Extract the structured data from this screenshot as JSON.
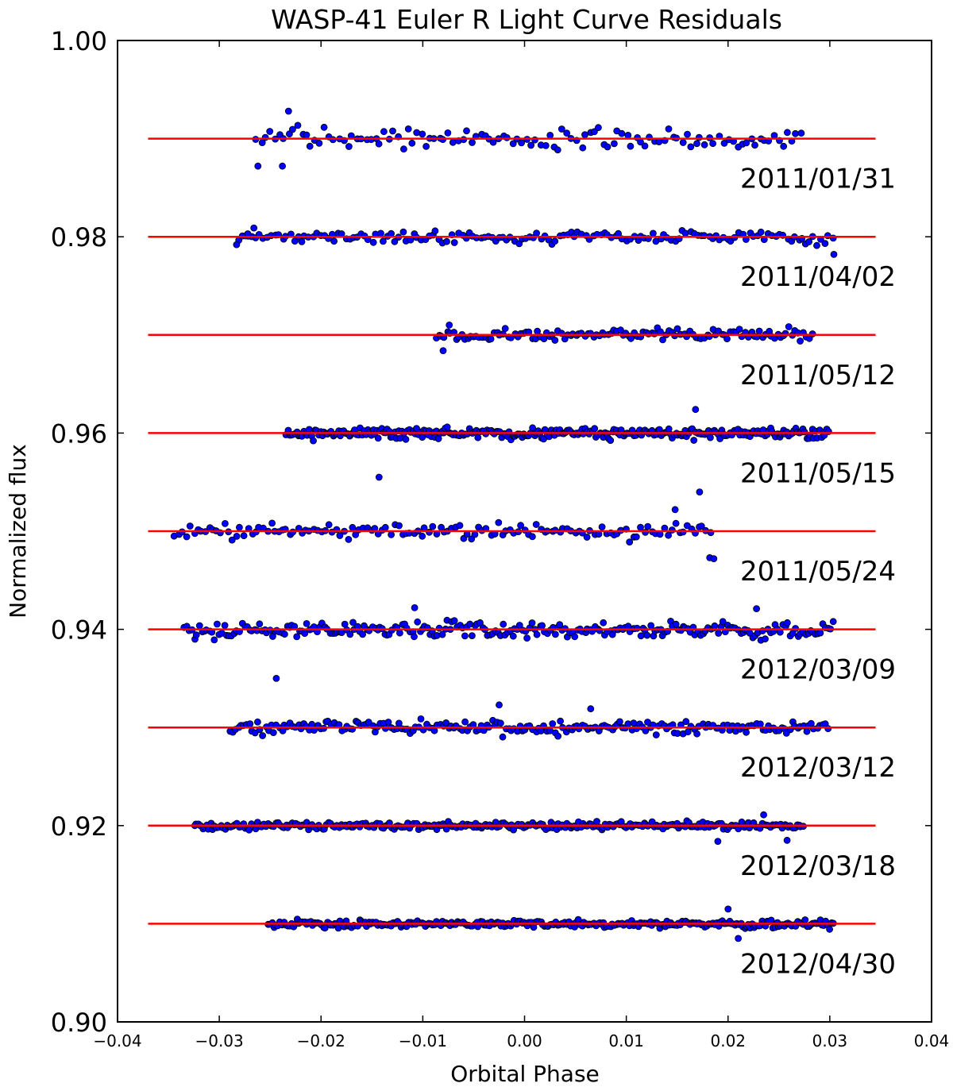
{
  "chart_data": {
    "type": "scatter",
    "title": "WASP-41 Euler R Light Curve Residuals",
    "xlabel": "Orbital Phase",
    "ylabel": "Normalized flux",
    "xlim": [
      -0.04,
      0.04
    ],
    "ylim": [
      0.9,
      1.0
    ],
    "xticks": [
      -0.04,
      -0.03,
      -0.02,
      -0.01,
      0.0,
      0.01,
      0.02,
      0.03,
      0.04
    ],
    "xtick_labels": [
      "−0.04",
      "−0.03",
      "−0.02",
      "−0.01",
      "0.00",
      "0.01",
      "0.02",
      "0.03",
      "0.04"
    ],
    "yticks": [
      0.9,
      0.92,
      0.94,
      0.96,
      0.98,
      1.0
    ],
    "ytick_labels": [
      "0.90",
      "0.92",
      "0.94",
      "0.96",
      "0.98",
      "1.00"
    ],
    "grid": false,
    "point_color": "#0000ff",
    "point_edge_color": "#000000",
    "model_line_color": "#ff0000",
    "model_line_xrange": [
      -0.037,
      0.0345
    ],
    "series": [
      {
        "name": "2011/01/31",
        "baseline": 0.99,
        "phase_range": [
          -0.0265,
          0.0275
        ],
        "scatter": 0.001,
        "n": 120,
        "outliers": [
          [
            -0.0262,
            0.9872
          ],
          [
            -0.0238,
            0.9872
          ],
          [
            -0.0232,
            0.9928
          ]
        ]
      },
      {
        "name": "2011/04/02",
        "baseline": 0.98,
        "phase_range": [
          -0.0283,
          0.0305
        ],
        "scatter": 0.0007,
        "n": 160,
        "outliers": [
          [
            -0.0283,
            0.9792
          ],
          [
            -0.0272,
            0.9803
          ],
          [
            -0.0266,
            0.9809
          ],
          [
            0.0304,
            0.9782
          ]
        ]
      },
      {
        "name": "2011/05/12",
        "baseline": 0.97,
        "phase_range": [
          -0.0088,
          0.0285
        ],
        "scatter": 0.0006,
        "n": 130,
        "outliers": [
          [
            -0.008,
            0.9684
          ],
          [
            -0.0074,
            0.971
          ]
        ]
      },
      {
        "name": "2011/05/15",
        "baseline": 0.96,
        "phase_range": [
          -0.0235,
          0.03
        ],
        "scatter": 0.0006,
        "n": 300,
        "outliers": [
          [
            -0.0143,
            0.9555
          ],
          [
            0.0172,
            0.954
          ],
          [
            0.0168,
            0.9624
          ]
        ]
      },
      {
        "name": "2011/05/24",
        "baseline": 0.95,
        "phase_range": [
          -0.0345,
          0.0185
        ],
        "scatter": 0.0008,
        "n": 140,
        "outliers": [
          [
            0.0182,
            0.9473
          ],
          [
            0.0186,
            0.9472
          ],
          [
            0.0148,
            0.9522
          ]
        ]
      },
      {
        "name": "2012/03/09",
        "baseline": 0.94,
        "phase_range": [
          -0.0335,
          0.0305
        ],
        "scatter": 0.0009,
        "n": 260,
        "outliers": [
          [
            -0.0244,
            0.935
          ],
          [
            -0.0108,
            0.9422
          ],
          [
            0.0228,
            0.9421
          ]
        ]
      },
      {
        "name": "2012/03/12",
        "baseline": 0.93,
        "phase_range": [
          -0.029,
          0.03
        ],
        "scatter": 0.0007,
        "n": 220,
        "outliers": [
          [
            -0.0025,
            0.9323
          ],
          [
            0.0065,
            0.9319
          ]
        ]
      },
      {
        "name": "2012/03/18",
        "baseline": 0.92,
        "phase_range": [
          -0.0325,
          0.0275
        ],
        "scatter": 0.0004,
        "n": 300,
        "outliers": [
          [
            0.0235,
            0.9211
          ],
          [
            0.0258,
            0.9185
          ],
          [
            0.019,
            0.9184
          ]
        ]
      },
      {
        "name": "2012/04/30",
        "baseline": 0.91,
        "phase_range": [
          -0.0252,
          0.0305
        ],
        "scatter": 0.0004,
        "n": 300,
        "outliers": [
          [
            0.02,
            0.9115
          ],
          [
            0.021,
            0.9085
          ]
        ]
      }
    ]
  }
}
